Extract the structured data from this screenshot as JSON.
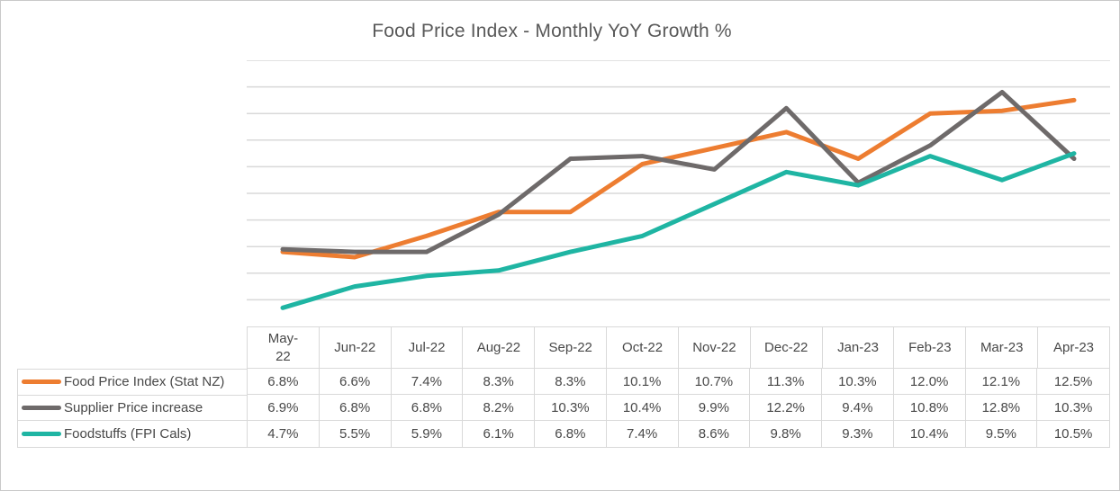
{
  "chart_data": {
    "type": "line",
    "title": "Food Price Index - Monthly YoY Growth %",
    "categories": [
      "May-22",
      "Jun-22",
      "Jul-22",
      "Aug-22",
      "Sep-22",
      "Oct-22",
      "Nov-22",
      "Dec-22",
      "Jan-23",
      "Feb-23",
      "Mar-23",
      "Apr-23"
    ],
    "categories_display": [
      "May-\n22",
      "Jun-22",
      "Jul-22",
      "Aug-22",
      "Sep-22",
      "Oct-22",
      "Nov-22",
      "Dec-22",
      "Jan-23",
      "Feb-23",
      "Mar-23",
      "Apr-23"
    ],
    "series": [
      {
        "name": "Food Price Index (Stat NZ)",
        "color": "#ED7D31",
        "values": [
          6.8,
          6.6,
          7.4,
          8.3,
          8.3,
          10.1,
          10.7,
          11.3,
          10.3,
          12.0,
          12.1,
          12.5
        ],
        "labels": [
          "6.8%",
          "6.6%",
          "7.4%",
          "8.3%",
          "8.3%",
          "10.1%",
          "10.7%",
          "11.3%",
          "10.3%",
          "12.0%",
          "12.1%",
          "12.5%"
        ]
      },
      {
        "name": "Supplier Price increase",
        "color": "#6E6A6A",
        "values": [
          6.9,
          6.8,
          6.8,
          8.2,
          10.3,
          10.4,
          9.9,
          12.2,
          9.4,
          10.8,
          12.8,
          10.3
        ],
        "labels": [
          "6.9%",
          "6.8%",
          "6.8%",
          "8.2%",
          "10.3%",
          "10.4%",
          "9.9%",
          "12.2%",
          "9.4%",
          "10.8%",
          "12.8%",
          "10.3%"
        ]
      },
      {
        "name": "Foodstuffs (FPI Cals)",
        "color": "#1FB5A3",
        "values": [
          4.7,
          5.5,
          5.9,
          6.1,
          6.8,
          7.4,
          8.6,
          9.8,
          9.3,
          10.4,
          9.5,
          10.5
        ],
        "labels": [
          "4.7%",
          "5.5%",
          "5.9%",
          "6.1%",
          "6.8%",
          "7.4%",
          "8.6%",
          "9.8%",
          "9.3%",
          "10.4%",
          "9.5%",
          "10.5%"
        ]
      }
    ],
    "ylim": [
      4,
      14
    ],
    "y_major_unit": 1,
    "grid": "horizontal-only",
    "gridline_color": "#D9D9D9",
    "axis_tick_labels_visible": false,
    "legend_position": "data-table-left"
  }
}
